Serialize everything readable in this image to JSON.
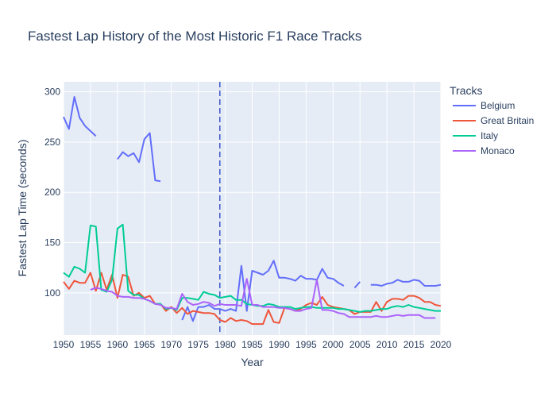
{
  "chart_data": {
    "type": "line",
    "title": "Fastest Lap History of the Most Historic F1 Race Tracks",
    "xlabel": "Year",
    "ylabel": "Fastest Lap Time (seconds)",
    "xlim": [
      1950,
      2020
    ],
    "ylim": [
      58,
      310
    ],
    "xticks": [
      1950,
      1955,
      1960,
      1965,
      1970,
      1975,
      1980,
      1985,
      1990,
      1995,
      2000,
      2005,
      2010,
      2015,
      2020
    ],
    "yticks": [
      100,
      150,
      200,
      250,
      300
    ],
    "grid": true,
    "legend_title": "Tracks",
    "legend_position": "right",
    "reference_line": {
      "x": 1979,
      "style": "dashed",
      "color": "#3d56c9"
    },
    "x": [
      1950,
      1951,
      1952,
      1953,
      1954,
      1955,
      1956,
      1957,
      1958,
      1959,
      1960,
      1961,
      1962,
      1963,
      1964,
      1965,
      1966,
      1967,
      1968,
      1969,
      1970,
      1971,
      1972,
      1973,
      1974,
      1975,
      1976,
      1977,
      1978,
      1979,
      1980,
      1981,
      1982,
      1983,
      1984,
      1985,
      1986,
      1987,
      1988,
      1989,
      1990,
      1991,
      1992,
      1993,
      1994,
      1995,
      1996,
      1997,
      1998,
      1999,
      2000,
      2001,
      2002,
      2003,
      2004,
      2005,
      2006,
      2007,
      2008,
      2009,
      2010,
      2011,
      2012,
      2013,
      2014,
      2015,
      2016,
      2017,
      2018,
      2019,
      2020
    ],
    "series": [
      {
        "name": "Belgium",
        "color": "#636efa",
        "values": [
          275,
          263,
          295,
          274,
          266,
          261,
          256,
          null,
          null,
          null,
          233,
          240,
          236,
          239,
          230,
          253,
          259,
          212,
          211,
          null,
          null,
          null,
          73,
          86,
          72,
          86,
          86,
          88,
          84,
          84,
          82,
          84,
          82,
          127,
          82,
          122,
          120,
          118,
          122,
          132,
          115,
          115,
          114,
          112,
          117,
          114,
          114,
          113,
          124,
          115,
          114,
          110,
          107,
          null,
          105,
          111,
          null,
          108,
          108,
          107,
          109,
          110,
          113,
          111,
          111,
          113,
          112,
          107,
          107,
          107,
          108
        ]
      },
      {
        "name": "Great Britain",
        "color": "#ef553b",
        "values": [
          111,
          104,
          112,
          110,
          110,
          120,
          102,
          120,
          103,
          118,
          95,
          118,
          116,
          97,
          100,
          95,
          97,
          89,
          89,
          82,
          86,
          80,
          85,
          79,
          82,
          81,
          80,
          80,
          79,
          73,
          71,
          75,
          72,
          73,
          72,
          69,
          69,
          69,
          83,
          71,
          70,
          85,
          84,
          82,
          84,
          88,
          90,
          88,
          96,
          88,
          86,
          85,
          84,
          83,
          79,
          81,
          81,
          81,
          91,
          82,
          91,
          94,
          94,
          93,
          97,
          97,
          95,
          91,
          91,
          88,
          87
        ]
      },
      {
        "name": "Italy",
        "color": "#00cc96",
        "values": [
          120,
          116,
          126,
          124,
          120,
          167,
          166,
          103,
          101,
          113,
          164,
          168,
          102,
          98,
          98,
          94,
          92,
          89,
          89,
          84,
          85,
          83,
          95,
          95,
          94,
          93,
          101,
          99,
          98,
          95,
          96,
          97,
          93,
          93,
          89,
          88,
          87,
          87,
          89,
          88,
          86,
          86,
          86,
          84,
          85,
          86,
          86,
          85,
          85,
          85,
          85,
          84,
          84,
          83,
          82,
          81,
          82,
          82,
          83,
          84,
          84,
          86,
          87,
          86,
          88,
          86,
          85,
          84,
          83,
          82,
          82
        ]
      },
      {
        "name": "Monaco",
        "color": "#ab63fa",
        "values": [
          null,
          null,
          null,
          null,
          null,
          103,
          105,
          104,
          102,
          101,
          97,
          96,
          96,
          95,
          95,
          94,
          92,
          89,
          88,
          85,
          85,
          84,
          99,
          91,
          88,
          89,
          91,
          90,
          87,
          89,
          88,
          88,
          88,
          87,
          114,
          88,
          88,
          86,
          86,
          86,
          85,
          85,
          84,
          82,
          82,
          84,
          85,
          113,
          83,
          83,
          82,
          80,
          79,
          76,
          76,
          76,
          76,
          76,
          77,
          76,
          76,
          77,
          78,
          77,
          78,
          78,
          78,
          75,
          75,
          75,
          null
        ]
      }
    ]
  }
}
